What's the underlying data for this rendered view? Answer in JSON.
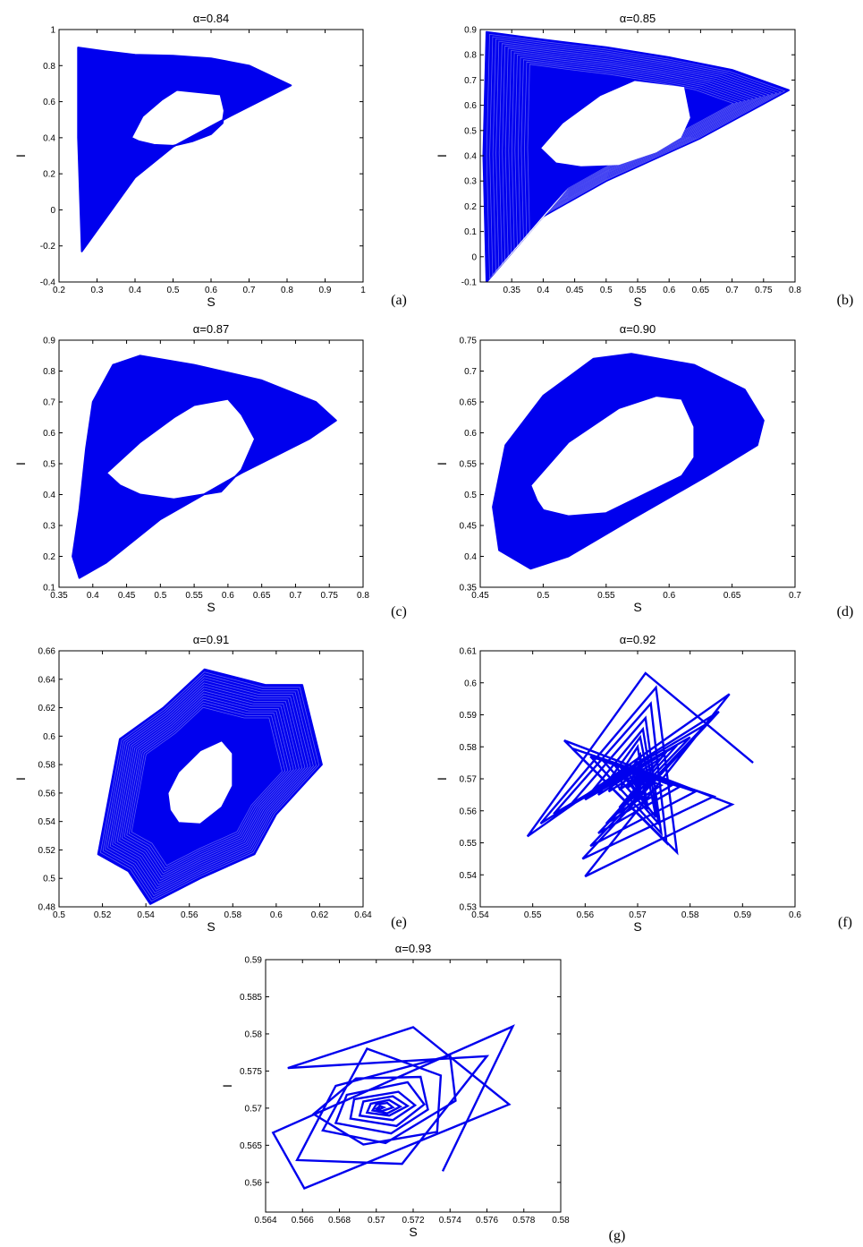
{
  "figure": {
    "color": "#0000ee"
  },
  "chart_data": [
    {
      "type": "line",
      "label": "(a)",
      "title": "α=0.84",
      "xlabel": "S",
      "ylabel": "I",
      "xlim": [
        0.2,
        1.0
      ],
      "ylim": [
        -0.4,
        1.0
      ],
      "xticks": [
        "0.2",
        "0.3",
        "0.4",
        "0.5",
        "0.6",
        "0.7",
        "0.8",
        "0.9",
        "1"
      ],
      "yticks": [
        "-0.4",
        "-0.2",
        "0",
        "0.2",
        "0.4",
        "0.6",
        "0.8",
        "1"
      ],
      "outer": [
        [
          0.25,
          0.9
        ],
        [
          0.32,
          0.88
        ],
        [
          0.4,
          0.86
        ],
        [
          0.5,
          0.855
        ],
        [
          0.6,
          0.84
        ],
        [
          0.7,
          0.8
        ],
        [
          0.81,
          0.69
        ],
        [
          0.65,
          0.52
        ],
        [
          0.5,
          0.35
        ],
        [
          0.4,
          0.18
        ],
        [
          0.26,
          -0.23
        ],
        [
          0.25,
          0.4
        ]
      ],
      "hole": [
        [
          0.39,
          0.4
        ],
        [
          0.42,
          0.52
        ],
        [
          0.47,
          0.61
        ],
        [
          0.51,
          0.665
        ],
        [
          0.625,
          0.64
        ],
        [
          0.635,
          0.55
        ],
        [
          0.63,
          0.48
        ],
        [
          0.6,
          0.42
        ],
        [
          0.55,
          0.38
        ],
        [
          0.5,
          0.355
        ],
        [
          0.45,
          0.36
        ],
        [
          0.41,
          0.38
        ]
      ]
    },
    {
      "type": "line",
      "label": "(b)",
      "title": "α=0.85",
      "xlabel": "S",
      "ylabel": "I",
      "xlim": [
        0.3,
        0.8
      ],
      "ylim": [
        -0.1,
        0.9
      ],
      "xticks": [
        "0.35",
        "0.4",
        "0.45",
        "0.5",
        "0.55",
        "0.6",
        "0.65",
        "0.7",
        "0.75",
        "0.8"
      ],
      "yticks": [
        "-0.1",
        "0",
        "0.1",
        "0.2",
        "0.3",
        "0.4",
        "0.5",
        "0.6",
        "0.7",
        "0.8",
        "0.9"
      ],
      "outer": [
        [
          0.31,
          0.89
        ],
        [
          0.4,
          0.86
        ],
        [
          0.5,
          0.83
        ],
        [
          0.6,
          0.79
        ],
        [
          0.7,
          0.74
        ],
        [
          0.79,
          0.66
        ],
        [
          0.65,
          0.47
        ],
        [
          0.5,
          0.3
        ],
        [
          0.4,
          0.16
        ],
        [
          0.31,
          -0.1
        ],
        [
          0.305,
          0.4
        ]
      ],
      "hole": [
        [
          0.395,
          0.43
        ],
        [
          0.43,
          0.53
        ],
        [
          0.49,
          0.64
        ],
        [
          0.545,
          0.7
        ],
        [
          0.625,
          0.675
        ],
        [
          0.635,
          0.55
        ],
        [
          0.62,
          0.47
        ],
        [
          0.58,
          0.41
        ],
        [
          0.52,
          0.36
        ],
        [
          0.46,
          0.355
        ],
        [
          0.42,
          0.37
        ]
      ]
    },
    {
      "type": "line",
      "label": "(c)",
      "title": "α=0.87",
      "xlabel": "S",
      "ylabel": "I",
      "xlim": [
        0.35,
        0.8
      ],
      "ylim": [
        0.1,
        0.9
      ],
      "xticks": [
        "0.35",
        "0.4",
        "0.45",
        "0.5",
        "0.55",
        "0.6",
        "0.65",
        "0.7",
        "0.75",
        "0.8"
      ],
      "yticks": [
        "0.1",
        "0.2",
        "0.3",
        "0.4",
        "0.5",
        "0.6",
        "0.7",
        "0.8",
        "0.9"
      ],
      "outer": [
        [
          0.37,
          0.2
        ],
        [
          0.38,
          0.35
        ],
        [
          0.39,
          0.55
        ],
        [
          0.4,
          0.7
        ],
        [
          0.43,
          0.82
        ],
        [
          0.47,
          0.85
        ],
        [
          0.55,
          0.82
        ],
        [
          0.65,
          0.77
        ],
        [
          0.73,
          0.7
        ],
        [
          0.76,
          0.64
        ],
        [
          0.72,
          0.58
        ],
        [
          0.62,
          0.47
        ],
        [
          0.5,
          0.32
        ],
        [
          0.42,
          0.18
        ],
        [
          0.38,
          0.13
        ]
      ],
      "hole": [
        [
          0.42,
          0.47
        ],
        [
          0.47,
          0.57
        ],
        [
          0.52,
          0.65
        ],
        [
          0.55,
          0.69
        ],
        [
          0.6,
          0.71
        ],
        [
          0.62,
          0.66
        ],
        [
          0.64,
          0.58
        ],
        [
          0.62,
          0.48
        ],
        [
          0.59,
          0.41
        ],
        [
          0.52,
          0.385
        ],
        [
          0.47,
          0.4
        ],
        [
          0.44,
          0.43
        ]
      ]
    },
    {
      "type": "line",
      "label": "(d)",
      "title": "α=0.90",
      "xlabel": "S",
      "ylabel": "I",
      "xlim": [
        0.45,
        0.7
      ],
      "ylim": [
        0.35,
        0.75
      ],
      "xticks": [
        "0.45",
        "0.5",
        "0.55",
        "0.6",
        "0.65",
        "0.7"
      ],
      "yticks": [
        "0.35",
        "0.4",
        "0.45",
        "0.5",
        "0.55",
        "0.6",
        "0.65",
        "0.7",
        "0.75"
      ],
      "outer": [
        [
          0.46,
          0.48
        ],
        [
          0.47,
          0.58
        ],
        [
          0.5,
          0.66
        ],
        [
          0.54,
          0.72
        ],
        [
          0.57,
          0.728
        ],
        [
          0.62,
          0.71
        ],
        [
          0.66,
          0.67
        ],
        [
          0.675,
          0.62
        ],
        [
          0.67,
          0.58
        ],
        [
          0.63,
          0.53
        ],
        [
          0.57,
          0.46
        ],
        [
          0.52,
          0.4
        ],
        [
          0.49,
          0.38
        ],
        [
          0.465,
          0.41
        ]
      ],
      "hole": [
        [
          0.49,
          0.515
        ],
        [
          0.52,
          0.585
        ],
        [
          0.56,
          0.64
        ],
        [
          0.59,
          0.66
        ],
        [
          0.61,
          0.655
        ],
        [
          0.62,
          0.61
        ],
        [
          0.62,
          0.56
        ],
        [
          0.61,
          0.53
        ],
        [
          0.58,
          0.5
        ],
        [
          0.55,
          0.47
        ],
        [
          0.52,
          0.465
        ],
        [
          0.5,
          0.475
        ],
        [
          0.495,
          0.49
        ]
      ]
    },
    {
      "type": "line",
      "label": "(e)",
      "title": "α=0.91",
      "xlabel": "S",
      "ylabel": "I",
      "xlim": [
        0.5,
        0.64
      ],
      "ylim": [
        0.48,
        0.66
      ],
      "xticks": [
        "0.5",
        "0.52",
        "0.54",
        "0.56",
        "0.58",
        "0.6",
        "0.62",
        "0.64"
      ],
      "yticks": [
        "0.48",
        "0.5",
        "0.52",
        "0.54",
        "0.56",
        "0.58",
        "0.6",
        "0.62",
        "0.64",
        "0.66"
      ],
      "outer": [
        [
          0.518,
          0.517
        ],
        [
          0.528,
          0.598
        ],
        [
          0.548,
          0.62
        ],
        [
          0.567,
          0.647
        ],
        [
          0.595,
          0.636
        ],
        [
          0.612,
          0.636
        ],
        [
          0.621,
          0.58
        ],
        [
          0.6,
          0.545
        ],
        [
          0.59,
          0.517
        ],
        [
          0.565,
          0.5
        ],
        [
          0.542,
          0.482
        ],
        [
          0.532,
          0.505
        ]
      ],
      "hole": [
        [
          0.55,
          0.56
        ],
        [
          0.555,
          0.575
        ],
        [
          0.565,
          0.59
        ],
        [
          0.575,
          0.597
        ],
        [
          0.58,
          0.588
        ],
        [
          0.58,
          0.565
        ],
        [
          0.575,
          0.55
        ],
        [
          0.565,
          0.538
        ],
        [
          0.555,
          0.539
        ],
        [
          0.551,
          0.548
        ]
      ]
    },
    {
      "type": "line",
      "label": "(f)",
      "title": "α=0.92",
      "xlabel": "S",
      "ylabel": "I",
      "xlim": [
        0.54,
        0.6
      ],
      "ylim": [
        0.53,
        0.61
      ],
      "xticks": [
        "0.54",
        "0.55",
        "0.56",
        "0.57",
        "0.58",
        "0.59",
        "0.6"
      ],
      "yticks": [
        "0.53",
        "0.54",
        "0.55",
        "0.56",
        "0.57",
        "0.58",
        "0.59",
        "0.6",
        "0.61"
      ],
      "spiral": [
        [
          0.592,
          0.575
        ],
        [
          0.5715,
          0.603
        ],
        [
          0.549,
          0.552
        ],
        [
          0.5875,
          0.5965
        ],
        [
          0.56,
          0.5395
        ],
        [
          0.588,
          0.562
        ],
        [
          0.556,
          0.582
        ],
        [
          0.5775,
          0.547
        ],
        [
          0.5735,
          0.5985
        ],
        [
          0.5515,
          0.556
        ],
        [
          0.5855,
          0.591
        ],
        [
          0.5595,
          0.545
        ],
        [
          0.5845,
          0.5645
        ],
        [
          0.5575,
          0.5795
        ],
        [
          0.5755,
          0.55
        ],
        [
          0.5725,
          0.5935
        ],
        [
          0.554,
          0.559
        ],
        [
          0.583,
          0.587
        ],
        [
          0.561,
          0.549
        ],
        [
          0.581,
          0.566
        ],
        [
          0.561,
          0.577
        ],
        [
          0.5745,
          0.553
        ],
        [
          0.5715,
          0.589
        ],
        [
          0.557,
          0.5615
        ],
        [
          0.58,
          0.583
        ],
        [
          0.5625,
          0.553
        ],
        [
          0.578,
          0.5675
        ],
        [
          0.5635,
          0.5755
        ],
        [
          0.574,
          0.556
        ],
        [
          0.571,
          0.5855
        ],
        [
          0.56,
          0.5635
        ],
        [
          0.5775,
          0.5805
        ],
        [
          0.564,
          0.556
        ],
        [
          0.5765,
          0.568
        ],
        [
          0.5655,
          0.5745
        ],
        [
          0.5735,
          0.558
        ],
        [
          0.5705,
          0.583
        ],
        [
          0.5625,
          0.565
        ],
        [
          0.5755,
          0.5785
        ],
        [
          0.5655,
          0.5585
        ],
        [
          0.5745,
          0.568
        ],
        [
          0.567,
          0.573
        ],
        [
          0.572,
          0.5605
        ],
        [
          0.57,
          0.58
        ],
        [
          0.5645,
          0.566
        ],
        [
          0.5745,
          0.5765
        ],
        [
          0.5665,
          0.561
        ],
        [
          0.573,
          0.5685
        ],
        [
          0.568,
          0.5725
        ],
        [
          0.5715,
          0.5625
        ],
        [
          0.5705,
          0.5775
        ],
        [
          0.5665,
          0.5665
        ],
        [
          0.5735,
          0.5745
        ],
        [
          0.5675,
          0.563
        ],
        [
          0.572,
          0.5685
        ],
        [
          0.569,
          0.572
        ],
        [
          0.5705,
          0.565
        ],
        [
          0.5705,
          0.575
        ],
        [
          0.568,
          0.567
        ],
        [
          0.572,
          0.573
        ],
        [
          0.569,
          0.565
        ],
        [
          0.571,
          0.569
        ],
        [
          0.5695,
          0.5705
        ],
        [
          0.5705,
          0.5675
        ],
        [
          0.57,
          0.572
        ],
        [
          0.5695,
          0.569
        ],
        [
          0.5705,
          0.5705
        ],
        [
          0.57,
          0.57
        ]
      ]
    },
    {
      "type": "line",
      "label": "(g)",
      "title": "α=0.93",
      "xlabel": "S",
      "ylabel": "I",
      "xlim": [
        0.564,
        0.58
      ],
      "ylim": [
        0.556,
        0.59
      ],
      "xticks": [
        "0.564",
        "0.566",
        "0.568",
        "0.57",
        "0.572",
        "0.574",
        "0.576",
        "0.578",
        "0.58"
      ],
      "yticks": [
        "0.56",
        "0.565",
        "0.57",
        "0.575",
        "0.58",
        "0.585",
        "0.59"
      ],
      "spiral": [
        [
          0.5736,
          0.5615
        ],
        [
          0.5774,
          0.581
        ],
        [
          0.5644,
          0.5667
        ],
        [
          0.5661,
          0.5592
        ],
        [
          0.5772,
          0.5705
        ],
        [
          0.572,
          0.5809
        ],
        [
          0.5652,
          0.5754
        ],
        [
          0.576,
          0.577
        ],
        [
          0.5714,
          0.5625
        ],
        [
          0.5657,
          0.563
        ],
        [
          0.5678,
          0.573
        ],
        [
          0.574,
          0.5771
        ],
        [
          0.5743,
          0.571
        ],
        [
          0.5705,
          0.5653
        ],
        [
          0.5671,
          0.567
        ],
        [
          0.5695,
          0.578
        ],
        [
          0.5735,
          0.5744
        ],
        [
          0.5733,
          0.5668
        ],
        [
          0.5693,
          0.5651
        ],
        [
          0.5666,
          0.5692
        ],
        [
          0.5689,
          0.574
        ],
        [
          0.5724,
          0.5742
        ],
        [
          0.5728,
          0.5698
        ],
        [
          0.5708,
          0.5666
        ],
        [
          0.5678,
          0.568
        ],
        [
          0.5684,
          0.5718
        ],
        [
          0.5717,
          0.5735
        ],
        [
          0.5726,
          0.5705
        ],
        [
          0.5711,
          0.5676
        ],
        [
          0.5686,
          0.5686
        ],
        [
          0.5688,
          0.5712
        ],
        [
          0.5712,
          0.5722
        ],
        [
          0.5721,
          0.5704
        ],
        [
          0.5709,
          0.5684
        ],
        [
          0.5691,
          0.569
        ],
        [
          0.5693,
          0.5709
        ],
        [
          0.5709,
          0.5716
        ],
        [
          0.5717,
          0.5703
        ],
        [
          0.5707,
          0.569
        ],
        [
          0.5695,
          0.5694
        ],
        [
          0.5697,
          0.5706
        ],
        [
          0.5707,
          0.5711
        ],
        [
          0.5713,
          0.5702
        ],
        [
          0.5706,
          0.5693
        ],
        [
          0.5698,
          0.5697
        ],
        [
          0.57,
          0.5705
        ],
        [
          0.5706,
          0.5707
        ],
        [
          0.5709,
          0.5701
        ],
        [
          0.5703,
          0.5696
        ],
        [
          0.57,
          0.5699
        ],
        [
          0.5702,
          0.5703
        ],
        [
          0.5704,
          0.5701
        ],
        [
          0.5702,
          0.5699
        ],
        [
          0.5701,
          0.5701
        ]
      ]
    }
  ]
}
